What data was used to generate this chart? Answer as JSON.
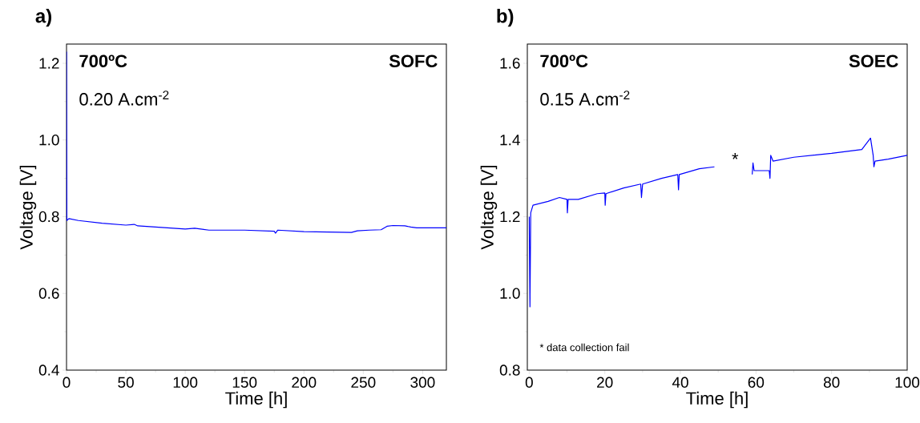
{
  "chart_data": [
    {
      "type": "line",
      "title": "a)",
      "xlabel": "Time [h]",
      "ylabel": "Voltage [V]",
      "color": "#0000ff",
      "x": [
        0,
        0.3,
        2,
        10,
        30,
        50,
        57,
        60,
        80,
        100,
        108,
        120,
        150,
        175,
        176,
        178,
        200,
        220,
        240,
        245,
        255,
        265,
        270,
        275,
        285,
        290,
        295,
        320
      ],
      "values": [
        1.23,
        0.79,
        0.795,
        0.79,
        0.783,
        0.778,
        0.78,
        0.776,
        0.772,
        0.768,
        0.77,
        0.765,
        0.765,
        0.762,
        0.757,
        0.765,
        0.761,
        0.76,
        0.759,
        0.763,
        0.765,
        0.766,
        0.775,
        0.777,
        0.776,
        0.773,
        0.771,
        0.771
      ],
      "xlim": [
        0,
        320
      ],
      "ylim": [
        0.4,
        1.25
      ],
      "xticks": [
        0,
        50,
        100,
        150,
        200,
        250,
        300
      ],
      "yticks": [
        0.4,
        0.6,
        0.8,
        {
          "value": 1.0,
          "label": "1.0"
        },
        1.2
      ],
      "annotations": [
        "700ºC",
        "0.20 A.cm$^{-2}$",
        "SOFC"
      ]
    },
    {
      "type": "line",
      "title": "b)",
      "xlabel": "Time [h]",
      "ylabel": "Voltage [V]",
      "color": "#0000ff",
      "x": [
        0,
        0.2,
        0.4,
        1,
        5,
        8,
        10,
        10.1,
        10.3,
        13,
        18,
        20,
        20.1,
        20.3,
        25,
        29.5,
        29.7,
        30,
        35,
        39.3,
        39.5,
        39.7,
        45,
        49,
        54,
        59,
        59.2,
        59.5,
        63.5,
        63.7,
        63.9,
        64.5,
        70,
        80,
        88,
        90.3,
        91,
        91.2,
        91.5,
        95,
        100
      ],
      "values": [
        1.2,
        0.965,
        1.21,
        1.23,
        1.24,
        1.25,
        1.245,
        1.21,
        1.245,
        1.245,
        1.26,
        1.262,
        1.23,
        1.26,
        1.275,
        1.285,
        1.25,
        1.285,
        1.3,
        1.31,
        1.27,
        1.31,
        1.325,
        1.33,
        null,
        1.31,
        1.34,
        1.32,
        1.32,
        1.3,
        1.36,
        1.345,
        1.355,
        1.365,
        1.375,
        1.405,
        1.36,
        1.33,
        1.345,
        1.35,
        1.36
      ],
      "xlim": [
        -0.5,
        100
      ],
      "ylim": [
        0.8,
        1.65
      ],
      "xticks": [
        0,
        20,
        40,
        60,
        80,
        100
      ],
      "yticks": [
        0.8,
        {
          "value": 1.0,
          "label": "1.0"
        },
        1.2,
        1.4,
        1.6
      ],
      "annotations": [
        "700ºC",
        "0.15 A.cm$^{-2}$",
        "SOEC",
        "*",
        "* data collection fail"
      ]
    }
  ]
}
